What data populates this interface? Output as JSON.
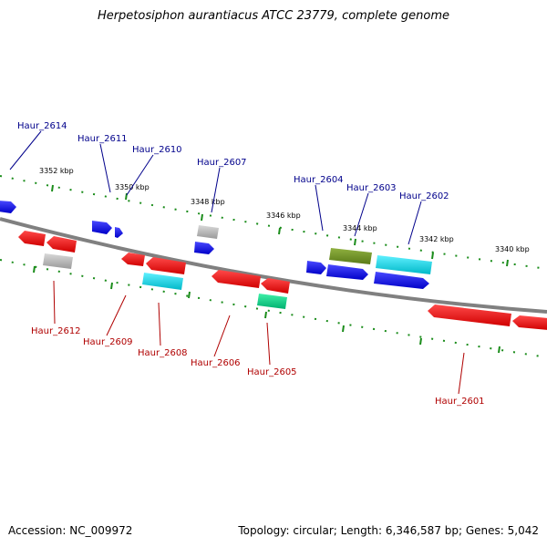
{
  "title": "Herpetosiphon aurantiacus ATCC 23779, complete genome",
  "footer": {
    "accession": "Accession: NC_009972",
    "topology": "Topology: circular; Length: 6,346,587 bp; Genes: 5,042"
  },
  "ticks": [
    "3352 kbp",
    "3350 kbp",
    "3348 kbp",
    "3346 kbp",
    "3344 kbp",
    "3342 kbp",
    "3340 kbp"
  ],
  "top_labels": [
    "Haur_2614",
    "Haur_2611",
    "Haur_2610",
    "Haur_2607",
    "Haur_2604",
    "Haur_2603",
    "Haur_2602"
  ],
  "bottom_labels": [
    "Haur_2612",
    "Haur_2609",
    "Haur_2608",
    "Haur_2606",
    "Haur_2605",
    "Haur_2601"
  ],
  "colors": {
    "forward_gene": "#0000ee",
    "reverse_gene": "#ee0000",
    "cyan_gene": "#00d8e8",
    "olive_gene": "#6b8e23",
    "green_gene": "#00d88a",
    "gray_gene": "#b0b0b0",
    "backbone": "#808080",
    "tick_marks": "#1a8c1a"
  }
}
